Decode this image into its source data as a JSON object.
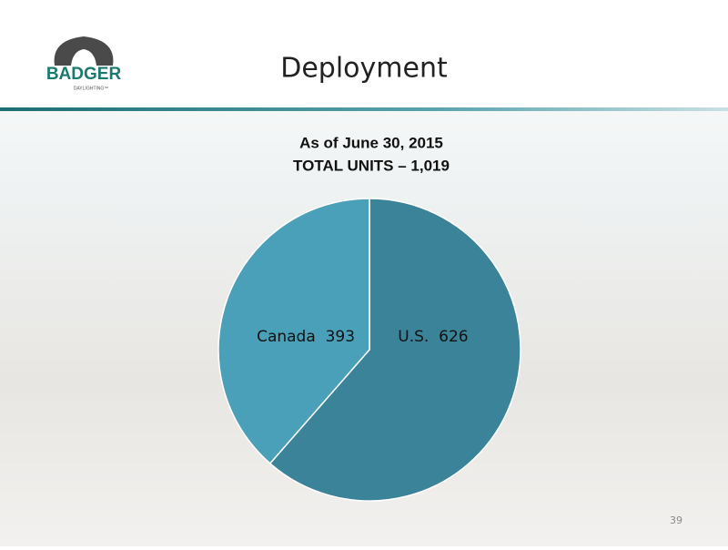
{
  "header": {
    "logo_text": "BADGER",
    "logo_subtext": "DAYLIGHTING™",
    "title": "Deployment"
  },
  "chart_data": {
    "type": "pie",
    "title": "As of June 30, 2015",
    "subtitle": "TOTAL UNITS – 1,019",
    "categories": [
      "U.S.",
      "Canada"
    ],
    "values": [
      626,
      393
    ],
    "colors": [
      "#3b8399",
      "#4aa0b8"
    ]
  },
  "footer": {
    "page_number": 39
  }
}
